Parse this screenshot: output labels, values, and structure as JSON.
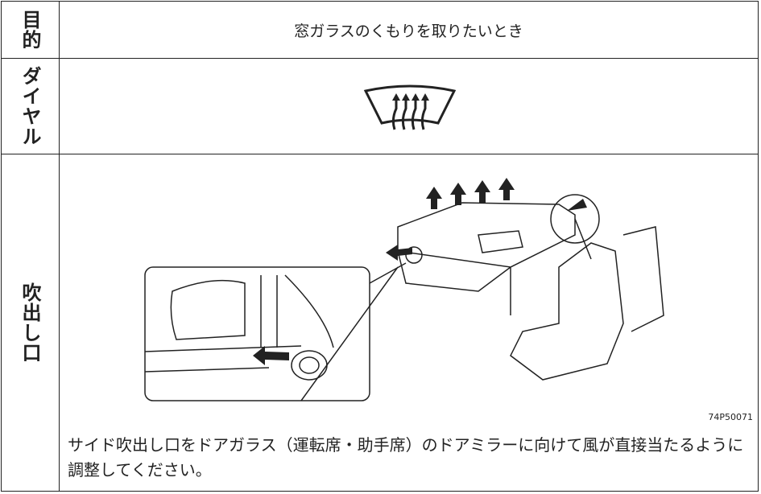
{
  "rows": [
    {
      "label": "目的",
      "text": "窓ガラスのくもりを取りたいとき"
    },
    {
      "label": "ダイヤル"
    },
    {
      "label": "吹出し口",
      "figure_code": "74P50071",
      "text": "サイド吹出し口をドアガラス（運転席・助手席）のドアミラーに向けて風が直接当たるように調整してください。"
    }
  ]
}
